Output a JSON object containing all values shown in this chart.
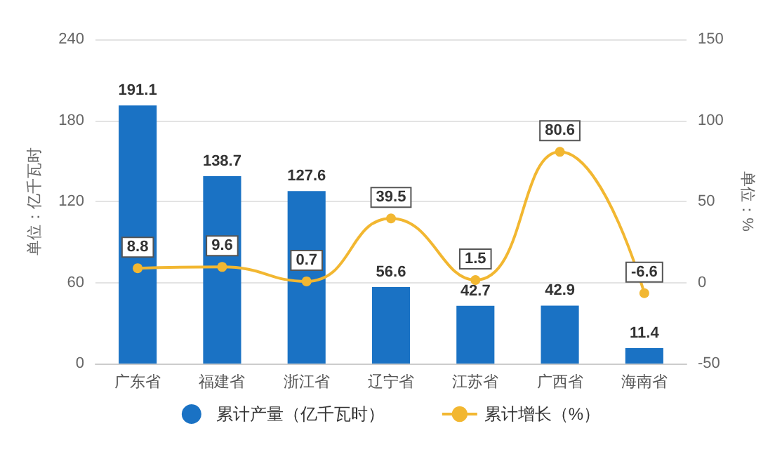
{
  "chart_data": {
    "type": "bar",
    "categories": [
      "广东省",
      "福建省",
      "浙江省",
      "辽宁省",
      "江苏省",
      "广西省",
      "海南省"
    ],
    "series": [
      {
        "name": "累计产量（亿千瓦时）",
        "color": "#1a72c4",
        "values": [
          191.1,
          138.7,
          127.6,
          56.6,
          42.7,
          42.9,
          11.4
        ]
      },
      {
        "name": "累计增长（%）",
        "type": "line",
        "axis": "y2",
        "color": "#f2b731",
        "values": [
          8.8,
          9.6,
          0.7,
          39.5,
          1.5,
          80.6,
          -6.6
        ]
      }
    ],
    "ylabel": "单位：亿千瓦时",
    "y2label": "单位：%",
    "ylim": [
      0,
      240
    ],
    "yticks": [
      0,
      60,
      120,
      180,
      240
    ],
    "y2lim": [
      -50,
      150
    ],
    "y2ticks": [
      -50,
      0,
      50,
      100,
      150
    ],
    "grid": "y",
    "legend": "bottom",
    "marker": "circle",
    "data_labels": true
  }
}
